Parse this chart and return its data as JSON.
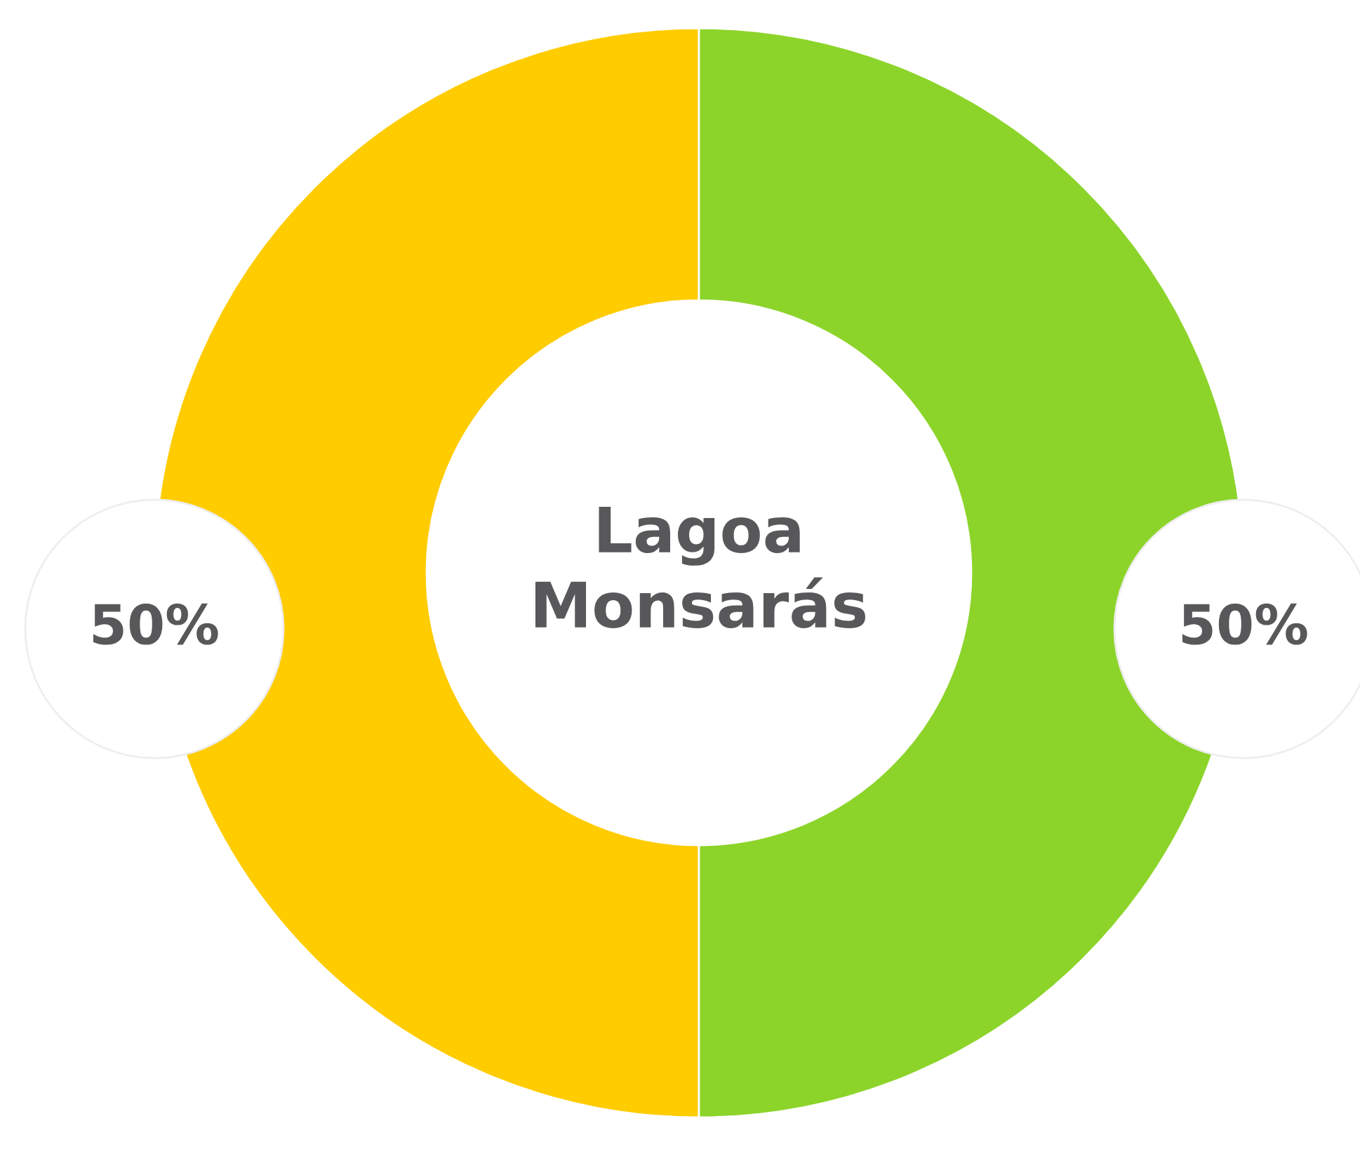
{
  "chart_data": {
    "type": "donut",
    "title": "Lagoa\nMonsarás",
    "categories": [
      null,
      null
    ],
    "values": [
      50,
      50
    ],
    "colors": [
      "#ffcc00",
      "#8cd42a"
    ],
    "value_labels": [
      "50%",
      "50%"
    ],
    "legend": false
  }
}
